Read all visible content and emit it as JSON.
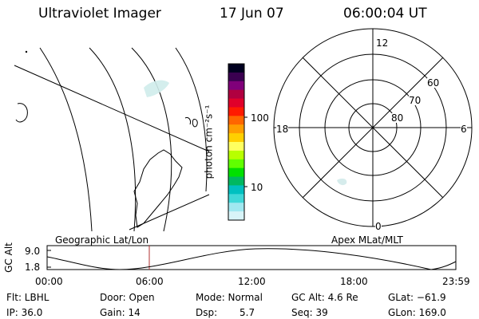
{
  "header": {
    "instrument": "Ultraviolet Imager",
    "date": "17 Jun 07",
    "time": "06:00:04 UT"
  },
  "colorbar": {
    "unit_label": "photon cm⁻²s⁻¹",
    "tick_labels": [
      "100",
      "10"
    ],
    "colors": [
      "#000020",
      "#3a0050",
      "#80007a",
      "#b00040",
      "#e0002a",
      "#ff1a00",
      "#ff6600",
      "#ff9e00",
      "#ffd000",
      "#ffff60",
      "#b8ff00",
      "#60ff00",
      "#00e000",
      "#00b860",
      "#00c0c0",
      "#40d8d8",
      "#a0e8f0",
      "#d8f4f8"
    ]
  },
  "map_panel": {
    "label": "Geographic Lat/Lon"
  },
  "polar_panel": {
    "label": "Apex MLat/MLT",
    "mlt_labels": [
      "12",
      "18",
      "6",
      "0"
    ],
    "lat_labels": [
      "60",
      "70",
      "80"
    ]
  },
  "altitude_plot": {
    "ylabel": "GC Alt",
    "ytick_labels": [
      "9.0",
      "1.8"
    ],
    "xtick_labels": [
      "00:00",
      "06:00",
      "12:00",
      "18:00",
      "23:59"
    ],
    "marker_time": "06:00"
  },
  "footer": {
    "flt": "Flt: LBHL",
    "ip": "IP: 36.0",
    "door": "Door: Open",
    "gain": "Gain: 14",
    "mode": "Mode: Normal",
    "dsp_label": "Dsp:",
    "dsp_value": "5.7",
    "gc_alt": "GC Alt: 4.6 Re",
    "seq": "Seq: 39",
    "glat": "GLat: −61.9",
    "glon": "GLon: 169.0"
  }
}
